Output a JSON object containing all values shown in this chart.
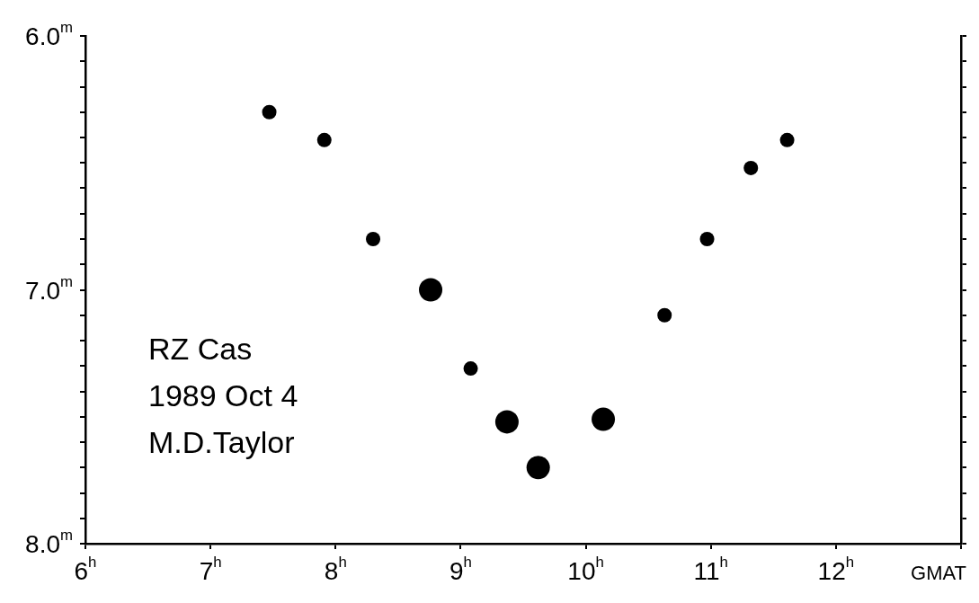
{
  "chart_data": {
    "type": "bubble",
    "xlabel": "GMAT",
    "x": [
      7.47,
      7.91,
      8.3,
      8.76,
      9.08,
      9.37,
      9.62,
      10.14,
      10.63,
      10.97,
      11.32,
      11.61
    ],
    "values": [
      6.3,
      6.41,
      6.8,
      7.0,
      7.31,
      7.52,
      7.7,
      7.51,
      7.1,
      6.8,
      6.52,
      6.41
    ],
    "sizes": [
      0.38,
      0.38,
      0.38,
      1,
      0.38,
      1,
      1,
      1,
      0.38,
      0.38,
      0.38,
      0.38
    ],
    "color": "#000000",
    "xlim": [
      6,
      13
    ],
    "xticks": [
      {
        "value": 6,
        "label": "6$^{h}$"
      },
      {
        "value": 7,
        "label": "7$^{h}$"
      },
      {
        "value": 8,
        "label": "8$^{h}$"
      },
      {
        "value": 9,
        "label": "9$^{h}$"
      },
      {
        "value": 10,
        "label": "10$^{h}$"
      },
      {
        "value": 11,
        "label": "11$^{h}$"
      },
      {
        "value": 12,
        "label": "12$^{h}$"
      },
      {
        "value": 13,
        "label": null
      }
    ],
    "ylim": [
      8,
      6
    ],
    "yticks": [
      {
        "value": 6,
        "label": "6.0$^{m}$"
      },
      {
        "value": 6.1,
        "label": null
      },
      {
        "value": 6.2,
        "label": null
      },
      {
        "value": 6.3,
        "label": null
      },
      {
        "value": 6.4,
        "label": null
      },
      {
        "value": 6.5,
        "label": null
      },
      {
        "value": 6.6,
        "label": null
      },
      {
        "value": 6.7,
        "label": null
      },
      {
        "value": 6.8,
        "label": null
      },
      {
        "value": 6.9,
        "label": null
      },
      {
        "value": 7,
        "label": "7.0$^{m}$"
      },
      {
        "value": 7.1,
        "label": null
      },
      {
        "value": 7.2,
        "label": null
      },
      {
        "value": 7.3,
        "label": null
      },
      {
        "value": 7.4,
        "label": null
      },
      {
        "value": 7.5,
        "label": null
      },
      {
        "value": 7.6,
        "label": null
      },
      {
        "value": 7.7,
        "label": null
      },
      {
        "value": 7.8,
        "label": null
      },
      {
        "value": 7.9,
        "label": null
      },
      {
        "value": 8,
        "label": "8.0$^{m}$"
      }
    ],
    "annotations": [
      "RZ Cas",
      "1989 Oct 4",
      "M.D.Taylor"
    ]
  }
}
